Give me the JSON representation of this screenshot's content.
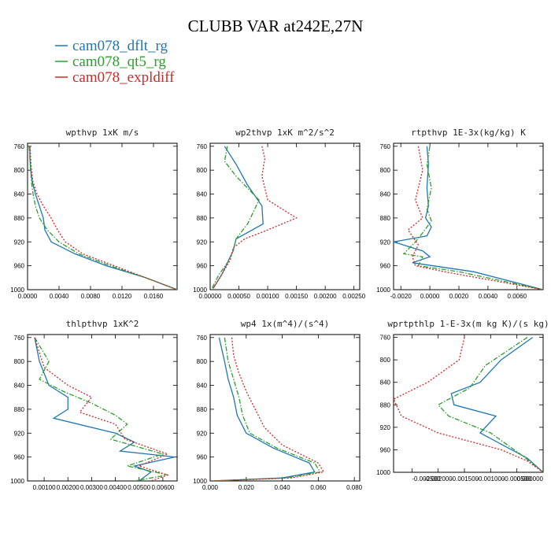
{
  "figure_title": "CLUBB VAR at242E,27N",
  "legend": [
    {
      "label": "cam078_dflt_rg",
      "color": "#1f77b4",
      "dash": "solid"
    },
    {
      "label": "cam078_qt5_rg",
      "color": "#2ca02c",
      "dash": "dashdot"
    },
    {
      "label": "cam078_expldiff",
      "color": "#d62728",
      "dash": "dotted"
    }
  ],
  "chart_data": [
    {
      "type": "line",
      "title": "wpthvp  1xK m/s",
      "xlim": [
        0,
        0.019
      ],
      "ylim": [
        1000,
        755
      ],
      "xticks": [
        "0.0000",
        "0.0040",
        "0.0080",
        "0.0120",
        "0.0160"
      ],
      "xtick_values": [
        0,
        0.004,
        0.008,
        0.012,
        0.016
      ],
      "yticks": [
        760,
        800,
        840,
        880,
        920,
        960,
        1000
      ],
      "series": [
        {
          "name": "cam078_dflt_rg",
          "x": [
            0.0003,
            0.0003,
            0.0004,
            0.0006,
            0.001,
            0.0015,
            0.002,
            0.0022,
            0.003,
            0.006,
            0.01,
            0.015,
            0.019
          ],
          "y": [
            760,
            780,
            800,
            820,
            840,
            860,
            880,
            900,
            920,
            940,
            960,
            980,
            1000
          ]
        },
        {
          "name": "cam078_qt5_rg",
          "x": [
            0.0002,
            0.0003,
            0.0004,
            0.0005,
            0.0007,
            0.001,
            0.0015,
            0.0025,
            0.004,
            0.0065,
            0.0105,
            0.015,
            0.019
          ],
          "y": [
            760,
            780,
            800,
            820,
            840,
            860,
            880,
            900,
            920,
            940,
            960,
            980,
            1000
          ]
        },
        {
          "name": "cam078_expldiff",
          "x": [
            0.0003,
            0.0004,
            0.0005,
            0.0007,
            0.0012,
            0.002,
            0.003,
            0.0038,
            0.0048,
            0.007,
            0.011,
            0.015,
            0.019
          ],
          "y": [
            760,
            780,
            800,
            820,
            840,
            860,
            880,
            900,
            920,
            940,
            960,
            980,
            1000
          ]
        }
      ]
    },
    {
      "type": "line",
      "title": "wp2thvp  1xK m^2/s^2",
      "xlim": [
        0,
        0.0026
      ],
      "ylim": [
        1000,
        755
      ],
      "xticks": [
        "0.00000",
        "0.00050",
        "0.00100",
        "0.00150",
        "0.00200",
        "0.00250"
      ],
      "xtick_values": [
        0,
        0.0005,
        0.001,
        0.0015,
        0.002,
        0.0025
      ],
      "yticks": [
        760,
        800,
        840,
        880,
        920,
        960,
        1000
      ],
      "series": [
        {
          "name": "cam078_dflt_rg",
          "x": [
            0.00025,
            0.00045,
            0.00065,
            0.0009,
            0.00092,
            0.00045,
            0.0004,
            0.0003,
            0.0002,
            5e-05
          ],
          "y": [
            760,
            790,
            825,
            860,
            890,
            915,
            935,
            955,
            975,
            998
          ]
        },
        {
          "name": "cam078_qt5_rg",
          "x": [
            0.0003,
            0.00025,
            0.00045,
            0.00085,
            0.00065,
            0.00045,
            0.0004,
            0.0003,
            0.00015,
            3e-05
          ],
          "y": [
            760,
            785,
            810,
            850,
            890,
            915,
            935,
            955,
            975,
            998
          ]
        },
        {
          "name": "cam078_expldiff",
          "x": [
            0.0009,
            0.00095,
            0.0009,
            0.001,
            0.0015,
            0.001,
            0.0006,
            0.0004,
            0.00035,
            0.0002,
            5e-05
          ],
          "y": [
            760,
            780,
            810,
            850,
            880,
            900,
            915,
            930,
            950,
            975,
            998
          ]
        }
      ]
    },
    {
      "type": "line",
      "title": "rtpthvp  1E-3x(kg/kg) K",
      "xlim": [
        -0.0025,
        0.0078
      ],
      "ylim": [
        1000,
        755
      ],
      "xticks": [
        "-0.0020",
        "0.0000",
        "0.0020",
        "0.0040",
        "0.0060"
      ],
      "xtick_values": [
        -0.002,
        0,
        0.002,
        0.004,
        0.006
      ],
      "yticks": [
        760,
        800,
        840,
        880,
        920,
        960,
        1000
      ],
      "series": [
        {
          "name": "cam078_dflt_rg",
          "x": [
            -0.0002,
            -0.0001,
            -0.0002,
            -0.0001,
            -0.0003,
            0.0001,
            -0.0002,
            -0.0025,
            -0.0005,
            0.0,
            -0.0012,
            0.003,
            0.0078
          ],
          "y": [
            760,
            790,
            830,
            860,
            880,
            895,
            910,
            920,
            935,
            945,
            955,
            970,
            1000
          ]
        },
        {
          "name": "cam078_qt5_rg",
          "x": [
            0.0,
            -0.0002,
            0.0001,
            -0.0002,
            0.0001,
            -0.0005,
            -0.001,
            -0.0018,
            -0.0005,
            -0.0008,
            0.002,
            0.0078
          ],
          "y": [
            760,
            790,
            830,
            865,
            885,
            905,
            920,
            940,
            945,
            960,
            970,
            1000
          ]
        },
        {
          "name": "cam078_expldiff",
          "x": [
            -0.0008,
            -0.0005,
            -0.001,
            -0.0005,
            -0.0015,
            -0.0008,
            -0.0012,
            -0.001,
            0.001,
            0.0078
          ],
          "y": [
            760,
            800,
            850,
            880,
            900,
            925,
            945,
            960,
            970,
            1000
          ]
        }
      ]
    },
    {
      "type": "line",
      "title": "thlpthvp  1xK^2",
      "xlim": [
        0.0003,
        0.0066
      ],
      "ylim": [
        1000,
        755
      ],
      "xticks": [
        "0.00100",
        "0.00200",
        "0.00300",
        "0.00400",
        "0.00500",
        "0.00600"
      ],
      "xtick_values": [
        0.001,
        0.002,
        0.003,
        0.004,
        0.005,
        0.006
      ],
      "yticks": [
        760,
        800,
        840,
        880,
        920,
        960,
        1000
      ],
      "series": [
        {
          "name": "cam078_dflt_rg",
          "x": [
            0.0006,
            0.0008,
            0.0012,
            0.002,
            0.002,
            0.0014,
            0.004,
            0.0048,
            0.0042,
            0.0065,
            0.0048,
            0.0055,
            0.005
          ],
          "y": [
            760,
            800,
            840,
            860,
            880,
            895,
            920,
            935,
            950,
            960,
            975,
            985,
            1000
          ]
        },
        {
          "name": "cam078_qt5_rg",
          "x": [
            0.0006,
            0.0012,
            0.0008,
            0.0018,
            0.003,
            0.004,
            0.0045,
            0.0038,
            0.006,
            0.0045,
            0.0062,
            0.0048
          ],
          "y": [
            760,
            800,
            830,
            850,
            870,
            890,
            905,
            930,
            955,
            975,
            990,
            1000
          ]
        },
        {
          "name": "cam078_expldiff",
          "x": [
            0.0006,
            0.001,
            0.002,
            0.003,
            0.0025,
            0.004,
            0.0044,
            0.0062,
            0.005,
            0.0062,
            0.0055
          ],
          "y": [
            760,
            810,
            840,
            860,
            885,
            905,
            930,
            955,
            975,
            990,
            1000
          ]
        }
      ]
    },
    {
      "type": "line",
      "title": "wp4  1x(m^4)/(s^4)",
      "xlim": [
        0,
        0.083
      ],
      "ylim": [
        1000,
        755
      ],
      "xticks": [
        "0.000",
        "0.020",
        "0.040",
        "0.060",
        "0.080"
      ],
      "xtick_values": [
        0,
        0.02,
        0.04,
        0.06,
        0.08
      ],
      "yticks": [
        760,
        800,
        840,
        880,
        920,
        960,
        1000
      ],
      "series": [
        {
          "name": "cam078_dflt_rg",
          "x": [
            0.005,
            0.008,
            0.01,
            0.013,
            0.015,
            0.02,
            0.035,
            0.055,
            0.058,
            0.04,
            0.001
          ],
          "y": [
            760,
            800,
            830,
            860,
            890,
            920,
            945,
            970,
            985,
            995,
            1000
          ]
        },
        {
          "name": "cam078_qt5_rg",
          "x": [
            0.008,
            0.01,
            0.013,
            0.016,
            0.018,
            0.022,
            0.037,
            0.058,
            0.061,
            0.042,
            0.001
          ],
          "y": [
            760,
            800,
            830,
            860,
            890,
            920,
            945,
            970,
            985,
            995,
            1000
          ]
        },
        {
          "name": "cam078_expldiff",
          "x": [
            0.012,
            0.013,
            0.016,
            0.02,
            0.025,
            0.03,
            0.04,
            0.06,
            0.063,
            0.045,
            0.001
          ],
          "y": [
            760,
            790,
            820,
            850,
            880,
            910,
            940,
            970,
            985,
            995,
            1000
          ]
        }
      ]
    },
    {
      "type": "line",
      "title": "wprtpthlp  1-E-3x(m kg K)/(s kg)",
      "xlim": [
        -0.00285,
        0.0
      ],
      "ylim": [
        1000,
        755
      ],
      "xticks": [
        "-0.002500",
        "-0.002000",
        "-0.001500",
        "-0.001000",
        "-0.000500",
        "0.000000"
      ],
      "xtick_values": [
        -0.0025,
        -0.002,
        -0.0015,
        -0.001,
        -0.0005,
        0
      ],
      "yticks": [
        760,
        800,
        840,
        880,
        920,
        960,
        1000
      ],
      "series": [
        {
          "name": "cam078_dflt_rg",
          "x": [
            -0.0002,
            -0.0008,
            -0.0012,
            -0.00175,
            -0.0017,
            -0.0009,
            -0.0012,
            -0.0008,
            -0.0003,
            0.0
          ],
          "y": [
            760,
            800,
            840,
            860,
            880,
            900,
            930,
            950,
            975,
            1000
          ]
        },
        {
          "name": "cam078_qt5_rg",
          "x": [
            -0.0003,
            -0.0011,
            -0.0014,
            -0.002,
            -0.0018,
            -0.001,
            -0.0004,
            0.0
          ],
          "y": [
            760,
            810,
            850,
            880,
            900,
            930,
            970,
            1000
          ]
        },
        {
          "name": "cam078_expldiff",
          "x": [
            -0.0015,
            -0.0016,
            -0.0022,
            -0.00285,
            -0.0027,
            -0.002,
            -0.0008,
            -0.0003,
            0.0
          ],
          "y": [
            760,
            800,
            840,
            870,
            900,
            930,
            960,
            980,
            1000
          ]
        }
      ]
    }
  ]
}
